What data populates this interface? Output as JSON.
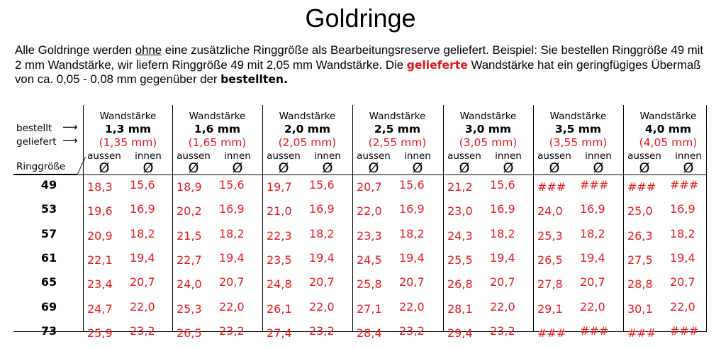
{
  "title": "Goldringe",
  "intro": {
    "part1": "Alle Goldringe werden ",
    "underlined": "ohne",
    "part2": " eine zusätzliche Ringgröße als Bearbeitungsreserve geliefert. Beispiel: Sie bestellen Ringgröße 49 mit 2 mm Wandstärke, wir liefern Ringgröße 49 mit 2,05 mm Wandstärke. Die ",
    "red": "gelieferte",
    "part3": " Wandstärke hat ein geringfügiges Übermaß von ca. 0,05 - 0,08 mm gegenüber der ",
    "bold": "bestellten."
  },
  "row_labels": {
    "bestellt": "bestellt",
    "geliefert": "geliefert",
    "ringgroesse": "Ringgröße",
    "arrow": "⟶"
  },
  "columns": [
    {
      "heading": "Wandstärke",
      "ordered": "1,3 mm",
      "delivered": "(1,35 mm)"
    },
    {
      "heading": "Wandstärke",
      "ordered": "1,6 mm",
      "delivered": "(1,65 mm)"
    },
    {
      "heading": "Wandstärke",
      "ordered": "2,0 mm",
      "delivered": "(2,05 mm)"
    },
    {
      "heading": "Wandstärke",
      "ordered": "2,5 mm",
      "delivered": "(2,55 mm)"
    },
    {
      "heading": "Wandstärke",
      "ordered": "3,0 mm",
      "delivered": "(3,05 mm)"
    },
    {
      "heading": "Wandstärke",
      "ordered": "3,5 mm",
      "delivered": "(3,55 mm)"
    },
    {
      "heading": "Wandstärke",
      "ordered": "4,0 mm",
      "delivered": "(4,05 mm)"
    }
  ],
  "sub_labels": {
    "outer": "aussen",
    "inner": "innen",
    "diameter": "Ø"
  },
  "rows": [
    {
      "size": "49",
      "values": [
        "18,3",
        "15,6",
        "18,9",
        "15,6",
        "19,7",
        "15,6",
        "20,7",
        "15,6",
        "21,2",
        "15,6",
        "###",
        "###",
        "###",
        "###"
      ]
    },
    {
      "size": "53",
      "values": [
        "19,6",
        "16,9",
        "20,2",
        "16,9",
        "21,0",
        "16,9",
        "22,0",
        "16,9",
        "23,0",
        "16,9",
        "24,0",
        "16,9",
        "25,0",
        "16,9"
      ]
    },
    {
      "size": "57",
      "values": [
        "20,9",
        "18,2",
        "21,5",
        "18,2",
        "22,3",
        "18,2",
        "23,3",
        "18,2",
        "24,3",
        "18,2",
        "25,3",
        "18,2",
        "26,3",
        "18,2"
      ]
    },
    {
      "size": "61",
      "values": [
        "22,1",
        "19,4",
        "22,7",
        "19,4",
        "23,5",
        "19,4",
        "24,5",
        "19,4",
        "25,5",
        "19,4",
        "26,5",
        "19,4",
        "27,5",
        "19,4"
      ]
    },
    {
      "size": "65",
      "values": [
        "23,4",
        "20,7",
        "24,0",
        "20,7",
        "24,8",
        "20,7",
        "25,8",
        "20,7",
        "26,8",
        "20,7",
        "27,8",
        "20,7",
        "28,8",
        "20,7"
      ]
    },
    {
      "size": "69",
      "values": [
        "24,7",
        "22,0",
        "25,3",
        "22,0",
        "26,1",
        "22,0",
        "27,1",
        "22,0",
        "28,1",
        "22,0",
        "29,1",
        "22,0",
        "30,1",
        "22,0"
      ]
    },
    {
      "size": "73",
      "values": [
        "25,9",
        "23,2",
        "26,5",
        "23,2",
        "27,4",
        "23,2",
        "28,4",
        "23,2",
        "29,4",
        "23,2",
        "###",
        "###",
        "###",
        "###"
      ]
    }
  ],
  "colors": {
    "accent_red": "#e8191b",
    "text": "#000000",
    "background": "#ffffff"
  }
}
